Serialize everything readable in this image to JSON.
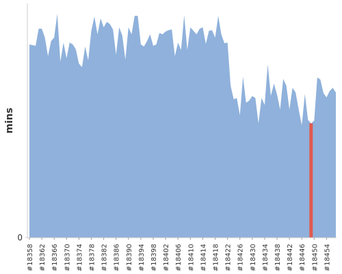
{
  "chart_data": {
    "type": "area",
    "y_label": "mins",
    "categories": [
      "#18358",
      null,
      null,
      null,
      "#18362",
      null,
      null,
      null,
      "#18366",
      null,
      null,
      null,
      "#18370",
      null,
      null,
      null,
      "#18374",
      null,
      null,
      null,
      "#18378",
      null,
      null,
      null,
      "#18382",
      null,
      null,
      null,
      "#18386",
      null,
      null,
      null,
      "#18390",
      null,
      null,
      null,
      "#18394",
      null,
      null,
      null,
      "#18398",
      null,
      null,
      null,
      "#18402",
      null,
      null,
      null,
      "#18406",
      null,
      null,
      null,
      "#18410",
      null,
      null,
      null,
      "#18414",
      null,
      null,
      null,
      "#18418",
      null,
      null,
      null,
      "#18422",
      null,
      null,
      null,
      "#18426",
      null,
      null,
      null,
      "#18430",
      null,
      null,
      null,
      "#18434",
      null,
      null,
      null,
      "#18438",
      null,
      null,
      null,
      "#18442",
      null,
      null,
      null,
      "#18446",
      null,
      null,
      null,
      "#18450",
      null,
      null,
      null,
      "#18454",
      null,
      null,
      null
    ],
    "values": [
      82.5,
      82.2,
      81.9,
      89.2,
      89.2,
      85.4,
      77.5,
      83.9,
      85.4,
      95.6,
      75.1,
      83.3,
      76.6,
      83.3,
      82.5,
      80.4,
      74.3,
      72.8,
      81.6,
      75.7,
      88.3,
      94.4,
      86.8,
      93.6,
      89.8,
      92.1,
      91.2,
      88.9,
      78.1,
      89.8,
      86.3,
      76.0,
      89.8,
      86.8,
      94.7,
      94.7,
      82.5,
      81.6,
      83.9,
      86.8,
      81.9,
      82.5,
      87.4,
      86.8,
      88.0,
      88.6,
      88.9,
      77.5,
      83.3,
      80.1,
      95.0,
      80.1,
      89.8,
      88.3,
      86.8,
      89.2,
      89.8,
      82.7,
      88.3,
      88.6,
      85.4,
      94.7,
      86.8,
      83.0,
      83.3,
      64.9,
      59.1,
      59.6,
      52.3,
      68.7,
      57.6,
      58.5,
      60.5,
      59.6,
      48.8,
      59.6,
      56.7,
      74.0,
      60.5,
      65.8,
      61.1,
      54.7,
      67.8,
      64.9,
      54.7,
      64.0,
      62.0,
      54.7,
      48.0,
      61.4,
      50.3,
      48.8,
      50.0,
      68.4,
      67.5,
      61.7,
      59.9,
      62.6,
      64.0,
      62.0
    ],
    "color": "#8fb1db",
    "highlight_index": 91,
    "highlight_color": "#e05a50",
    "ylim": [
      0,
      100
    ],
    "yticks": [
      0
    ]
  }
}
